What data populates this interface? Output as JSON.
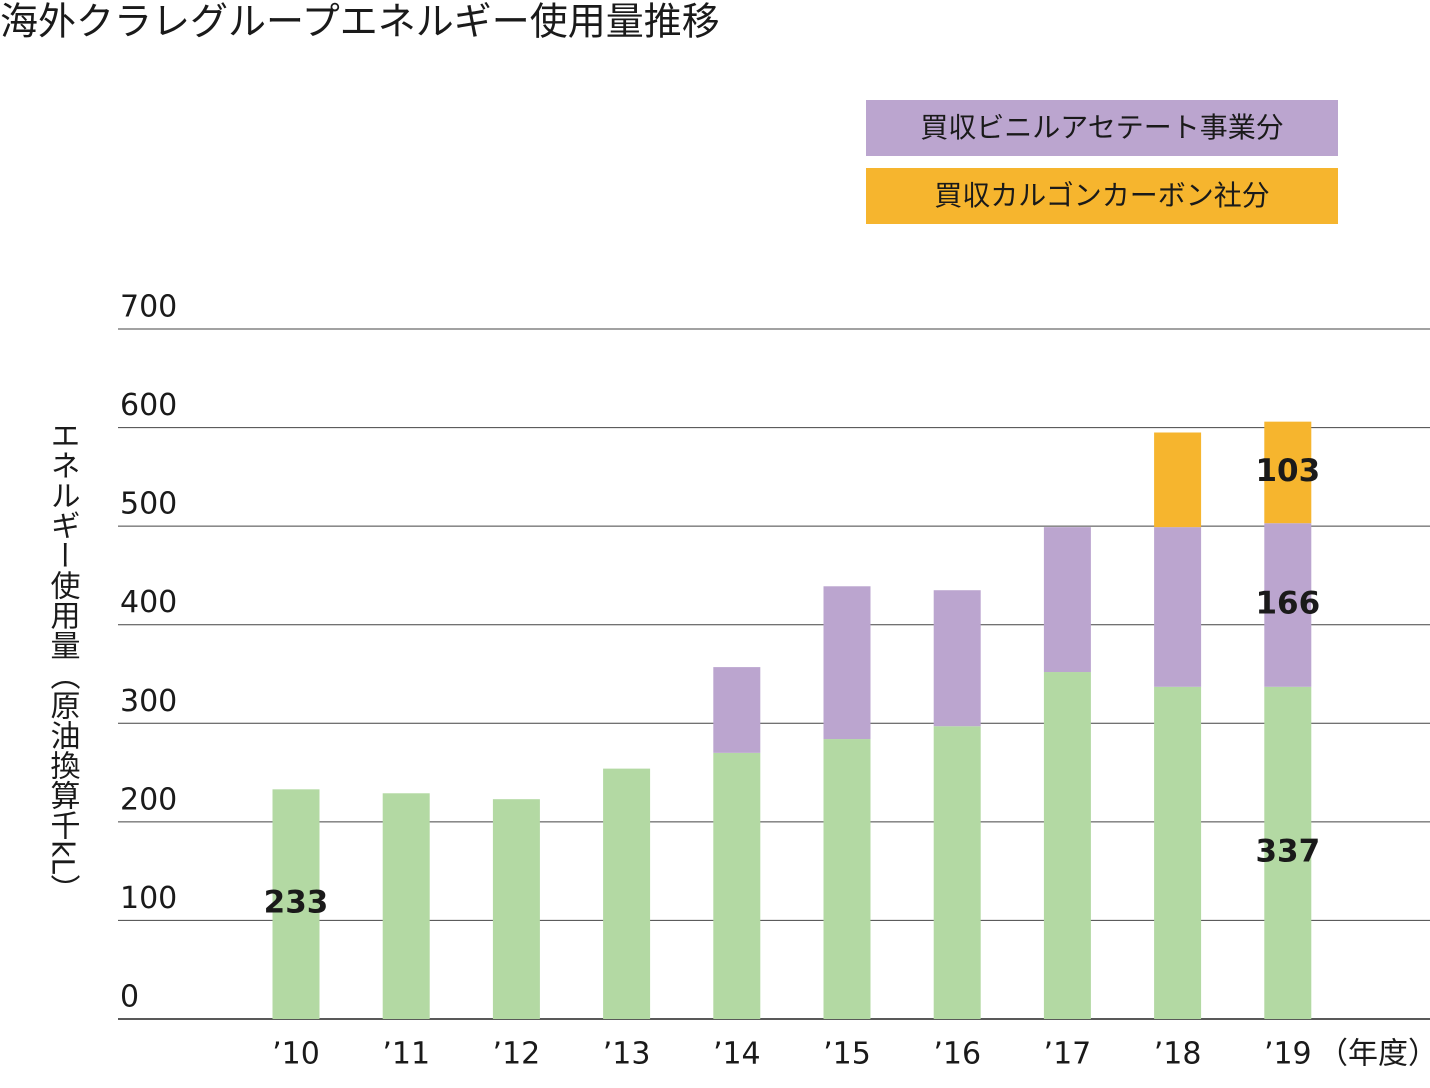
{
  "chart_data": {
    "type": "stacked_bar",
    "title": "海外クラレグループエネルギー使用量推移",
    "y_label": "エネルギー使用量（原油換算千kL）",
    "x_label": "（年度）",
    "categories": [
      "’10",
      "’11",
      "’12",
      "’13",
      "’14",
      "’15",
      "’16",
      "’17",
      "’18",
      "’19"
    ],
    "series": [
      {
        "color": "#b3d9a3",
        "values": [
          233,
          229,
          223,
          254,
          270,
          284,
          297,
          352,
          337,
          337
        ],
        "data_labels": [
          0,
          9
        ]
      },
      {
        "name": "買収ビニルアセテート事業分",
        "color": "#bba5cf",
        "values": [
          null,
          null,
          null,
          null,
          87,
          155,
          138,
          147,
          162,
          166
        ],
        "data_labels": [
          9
        ]
      },
      {
        "name": "買収カルゴンカーボン社分",
        "color": "#f6b52e",
        "values": [
          null,
          null,
          null,
          null,
          null,
          null,
          null,
          null,
          96,
          103
        ],
        "data_labels": [
          9
        ]
      }
    ],
    "ylim": [
      0,
      700
    ],
    "yticks": [
      0,
      100,
      200,
      300,
      400,
      500,
      600,
      700
    ],
    "grid": true
  }
}
